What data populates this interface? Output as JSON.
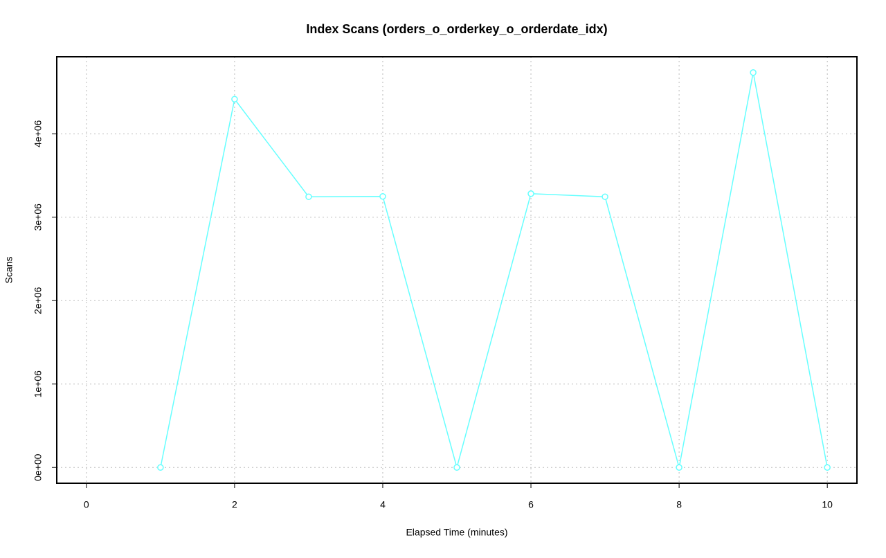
{
  "chart_data": {
    "type": "line",
    "title": "Index Scans (orders_o_orderkey_o_orderdate_idx)",
    "x_label": "Elapsed Time (minutes)",
    "y_label": "Scans",
    "x": [
      1,
      2,
      3,
      4,
      5,
      6,
      7,
      8,
      9,
      10
    ],
    "series": [
      {
        "color": "#66ffff",
        "values": [
          0,
          4415000,
          3245000,
          3249000,
          0,
          3282000,
          3245000,
          0,
          4734000,
          0
        ]
      }
    ],
    "xlim": [
      -0.4,
      10.4
    ],
    "xticks": [
      0,
      2,
      4,
      6,
      8,
      10
    ],
    "ylim": [
      -189000,
      4923000
    ],
    "yticks": [
      {
        "value": 0,
        "label": "0e+00"
      },
      {
        "value": 1000000,
        "label": "1e+06"
      },
      {
        "value": 2000000,
        "label": "2e+06"
      },
      {
        "value": 3000000,
        "label": "3e+06"
      },
      {
        "value": 4000000,
        "label": "4e+06"
      }
    ],
    "grid": true
  }
}
